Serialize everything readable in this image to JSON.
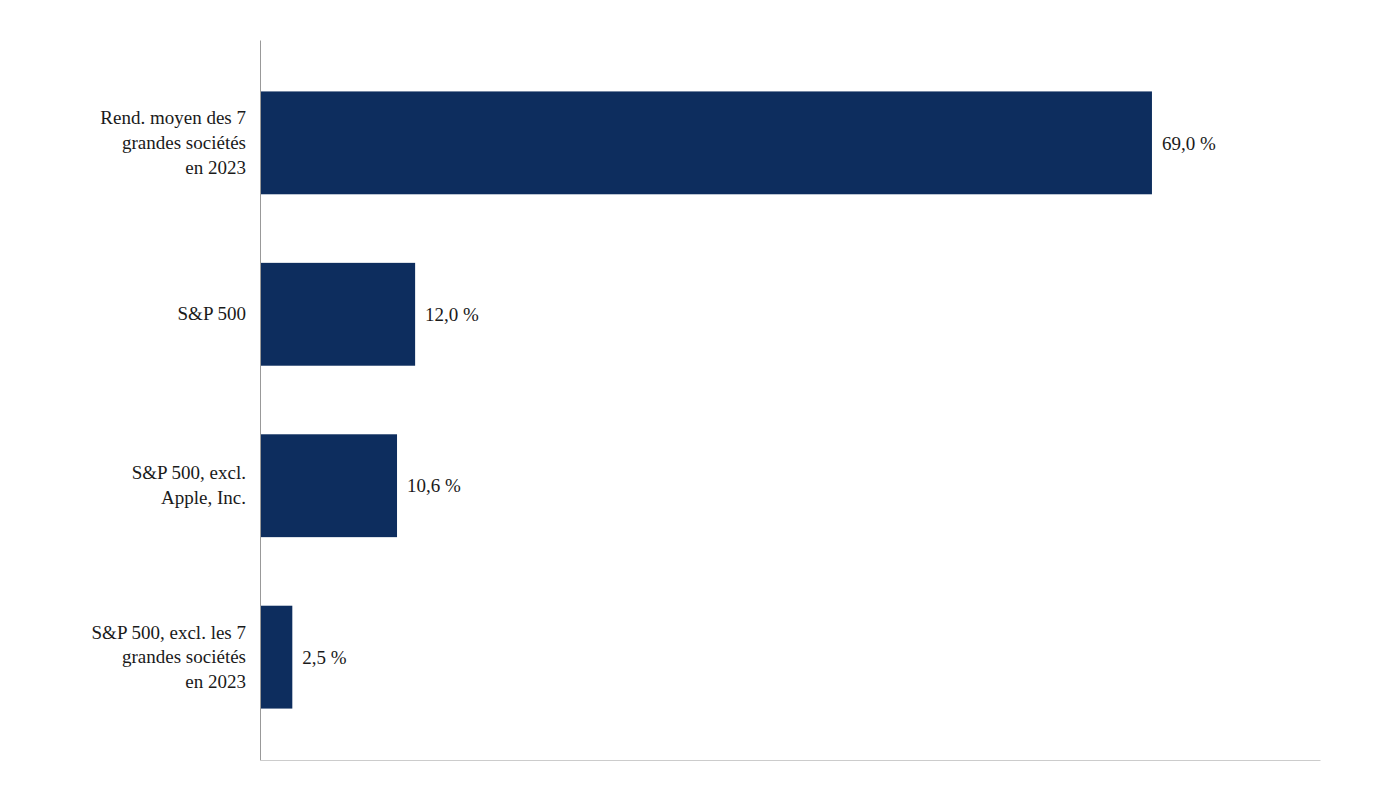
{
  "chart_data": {
    "type": "bar",
    "orientation": "horizontal",
    "categories": [
      "S&P 500, excl. les 7\ngrandes sociétés\nen 2023",
      "S&P 500, excl.\nApple, Inc.",
      "S&P 500",
      "Rend. moyen des 7\ngrandes sociétés\nen 2023"
    ],
    "values": [
      2.5,
      10.6,
      12.0,
      69.0
    ],
    "value_labels": [
      "2,5 %",
      "10,6 %",
      "12,0 %",
      "69,0 %"
    ],
    "color": "#0d2d5e",
    "xlim": [
      0,
      82
    ],
    "data_labels": true,
    "tick_labels": "y",
    "grid": false
  }
}
